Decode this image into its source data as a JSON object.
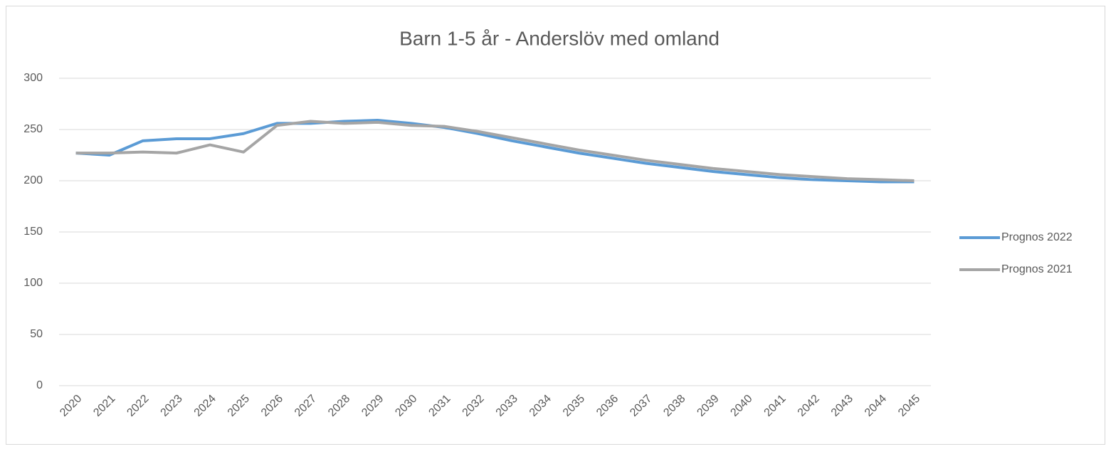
{
  "chart_data": {
    "type": "line",
    "title": "Barn 1-5 år - Anderslöv med omland",
    "categories": [
      "2020",
      "2021",
      "2022",
      "2023",
      "2024",
      "2025",
      "2026",
      "2027",
      "2028",
      "2029",
      "2030",
      "2031",
      "2032",
      "2033",
      "2034",
      "2035",
      "2036",
      "2037",
      "2038",
      "2039",
      "2040",
      "2041",
      "2042",
      "2043",
      "2044",
      "2045"
    ],
    "series": [
      {
        "name": "Prognos 2022",
        "color": "#5b9bd5",
        "values": [
          227,
          225,
          239,
          241,
          241,
          246,
          256,
          256,
          258,
          259,
          256,
          252,
          246,
          239,
          233,
          227,
          222,
          217,
          213,
          209,
          206,
          203,
          201,
          200,
          199,
          199
        ]
      },
      {
        "name": "Prognos 2021",
        "color": "#a5a5a5",
        "values": [
          227,
          227,
          228,
          227,
          235,
          228,
          254,
          258,
          256,
          257,
          254,
          253,
          248,
          242,
          236,
          230,
          225,
          220,
          216,
          212,
          209,
          206,
          204,
          202,
          201,
          200
        ]
      }
    ],
    "ylim": [
      0,
      300
    ],
    "yticks": [
      0,
      50,
      100,
      150,
      200,
      250,
      300
    ],
    "grid": true,
    "legend": "right"
  }
}
